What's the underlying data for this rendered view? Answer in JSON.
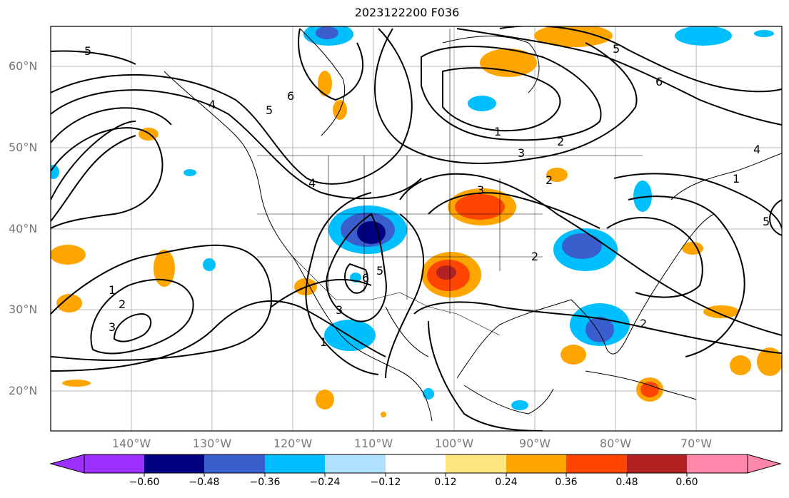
{
  "title": "2023122200 F036",
  "map": {
    "lat_labels": [
      "60°N",
      "50°N",
      "40°N",
      "30°N",
      "20°N"
    ],
    "lon_labels": [
      "140°W",
      "130°W",
      "120°W",
      "110°W",
      "100°W",
      "90°W",
      "80°W",
      "70°W"
    ],
    "contour_labels": [
      "5",
      "4",
      "5",
      "6",
      "1",
      "2",
      "3",
      "6",
      "5",
      "4",
      "3",
      "2",
      "1",
      "5",
      "6",
      "5",
      "1",
      "2",
      "3",
      "2",
      "1",
      "2",
      "3",
      "4"
    ]
  },
  "colorbar": {
    "tick_labels": [
      "−0.60",
      "−0.48",
      "−0.36",
      "−0.24",
      "−0.12",
      "0.12",
      "0.24",
      "0.36",
      "0.48",
      "0.60"
    ],
    "colors": [
      "#9b30ff",
      "#000080",
      "#3a5fcd",
      "#00bfff",
      "#b0e0ff",
      "#ffffff",
      "#ffe680",
      "#ffa500",
      "#ff4500",
      "#b22222",
      "#ff88aa"
    ]
  }
}
